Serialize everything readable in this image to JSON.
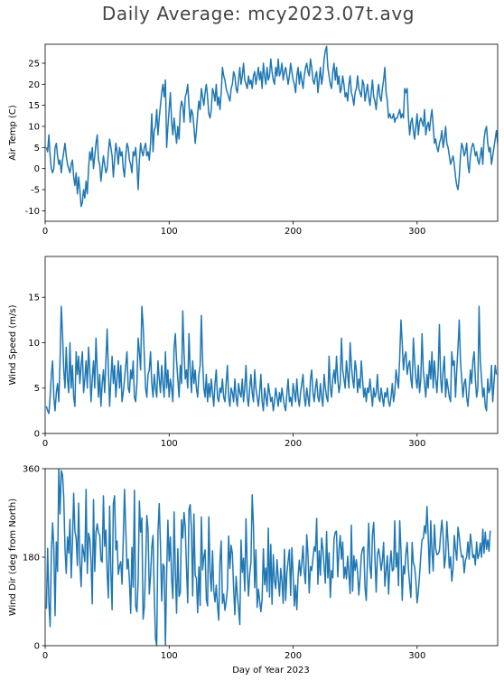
{
  "chart_data": {
    "title": "Daily Average: mcy2023.07t.avg",
    "xlabel": "Day of Year 2023",
    "colors": {
      "line": "#1f77b4",
      "title": "#444444"
    },
    "panels": [
      {
        "type": "line",
        "ylabel": "Air Temp (C)",
        "xlim": [
          0,
          365
        ],
        "ylim": [
          -12.5,
          29.5
        ],
        "xticks": [
          0,
          100,
          200,
          300
        ],
        "yticks": [
          -10,
          -5,
          0,
          5,
          10,
          15,
          20,
          25
        ],
        "x_start": 1,
        "values": [
          5,
          4,
          8,
          3,
          0,
          -1,
          0,
          5,
          6,
          3,
          1,
          2,
          -1,
          2,
          4,
          6,
          3,
          1,
          0,
          -1,
          1,
          2,
          -2,
          -4,
          -1,
          -6,
          -2,
          -5,
          -9,
          -8,
          -5,
          -7,
          -3,
          -6,
          0,
          4,
          2,
          5,
          0,
          3,
          6,
          8,
          2,
          1,
          -3,
          0,
          3,
          1,
          -1,
          0,
          4,
          7,
          5,
          3,
          -2,
          2,
          6,
          4,
          1,
          5,
          3,
          4,
          0,
          -2,
          3,
          6,
          5,
          2,
          1,
          -1,
          4,
          3,
          5,
          1,
          -5,
          2,
          6,
          4,
          3,
          5,
          6,
          3,
          4,
          2,
          6,
          13,
          4,
          9,
          10,
          14,
          8,
          12,
          15,
          18,
          20,
          17,
          21,
          5,
          10,
          14,
          18,
          11,
          8,
          12,
          9,
          6,
          10,
          7,
          14,
          16,
          15,
          11,
          17,
          18,
          20,
          15,
          11,
          14,
          13,
          10,
          6,
          9,
          13,
          16,
          14,
          19,
          17,
          15,
          18,
          20,
          17,
          13,
          12,
          14,
          19,
          18,
          16,
          20,
          15,
          17,
          14,
          18,
          24,
          22,
          21,
          19,
          18,
          17,
          16,
          19,
          20,
          23,
          22,
          19,
          18,
          21,
          24,
          20,
          22,
          25,
          21,
          20,
          19,
          22,
          20,
          21,
          19,
          22,
          23,
          20,
          22,
          24,
          21,
          23,
          19,
          25,
          22,
          20,
          24,
          21,
          22,
          26,
          23,
          21,
          20,
          24,
          22,
          26,
          22,
          23,
          25,
          21,
          23,
          24,
          22,
          20,
          22,
          25,
          23,
          21,
          20,
          18,
          22,
          24,
          20,
          23,
          21,
          19,
          22,
          24,
          25,
          23,
          22,
          26,
          24,
          21,
          20,
          22,
          23,
          18,
          21,
          24,
          20,
          22,
          26,
          28,
          29,
          24,
          22,
          20,
          19,
          23,
          25,
          21,
          24,
          20,
          22,
          18,
          19,
          22,
          20,
          17,
          18,
          16,
          20,
          22,
          18,
          17,
          15,
          18,
          19,
          22,
          19,
          18,
          17,
          21,
          20,
          16,
          18,
          20,
          17,
          15,
          18,
          21,
          17,
          16,
          14,
          18,
          20,
          17,
          16,
          19,
          21,
          24,
          18,
          16,
          12,
          13,
          12,
          12,
          13,
          11,
          12,
          12,
          13,
          14,
          12,
          13,
          12,
          19,
          18,
          19,
          12,
          8,
          11,
          12,
          9,
          7,
          10,
          13,
          8,
          11,
          12,
          11,
          10,
          14,
          8,
          10,
          11,
          9,
          12,
          14,
          10,
          6,
          7,
          5,
          4,
          6,
          7,
          9,
          5,
          7,
          10,
          6,
          5,
          3,
          1,
          2,
          3,
          1,
          -2,
          -4,
          -5,
          -2,
          3,
          6,
          5,
          3,
          4,
          6,
          1,
          -1,
          3,
          5,
          6,
          5,
          3,
          4,
          2,
          1,
          3,
          5,
          1,
          7,
          9,
          10,
          6,
          4,
          5,
          1,
          3,
          5,
          7,
          9,
          6,
          4,
          3,
          2,
          4
        ]
      },
      {
        "type": "line",
        "ylabel": "Wind Speed (m/s)",
        "xlim": [
          0,
          365
        ],
        "ylim": [
          0,
          19.5
        ],
        "xticks": [
          0,
          100,
          200,
          300
        ],
        "yticks": [
          0,
          5,
          10,
          15
        ],
        "x_start": 1,
        "values": [
          3.0,
          2.5,
          2.2,
          4.0,
          6.5,
          8.0,
          4.0,
          2.5,
          4.5,
          5.5,
          3.5,
          8.0,
          14.0,
          11.0,
          7.0,
          5.0,
          9.5,
          6.0,
          4.5,
          10.0,
          5.0,
          7.5,
          4.0,
          3.0,
          9.0,
          6.5,
          8.5,
          5.5,
          7.5,
          9.0,
          4.5,
          6.0,
          8.0,
          5.0,
          9.5,
          7.0,
          3.5,
          6.0,
          8.0,
          5.0,
          10.5,
          7.0,
          4.0,
          6.5,
          3.0,
          5.5,
          7.0,
          4.5,
          8.0,
          11.5,
          7.0,
          3.0,
          6.0,
          8.5,
          5.5,
          7.5,
          4.0,
          6.0,
          8.0,
          5.0,
          7.5,
          3.5,
          4.5,
          6.0,
          7.5,
          9.0,
          5.0,
          4.5,
          7.0,
          6.0,
          8.0,
          4.0,
          3.5,
          5.5,
          10.5,
          9.0,
          7.0,
          14.0,
          12.0,
          8.5,
          5.0,
          4.0,
          6.5,
          7.0,
          9.0,
          5.5,
          4.0,
          6.5,
          5.0,
          4.0,
          8.0,
          6.0,
          4.5,
          7.5,
          5.5,
          4.0,
          9.0,
          5.0,
          7.0,
          4.0,
          6.0,
          5.0,
          3.5,
          9.5,
          11.0,
          8.0,
          6.0,
          4.0,
          7.5,
          5.5,
          13.5,
          9.0,
          6.0,
          7.0,
          5.0,
          11.0,
          7.0,
          4.5,
          8.0,
          5.5,
          7.0,
          5.0,
          4.0,
          6.5,
          7.5,
          13.0,
          8.0,
          5.0,
          4.0,
          6.5,
          3.5,
          5.5,
          4.0,
          6.0,
          4.5,
          3.0,
          5.5,
          7.0,
          4.0,
          3.5,
          5.0,
          4.5,
          6.0,
          4.0,
          3.5,
          5.5,
          7.5,
          4.0,
          3.0,
          5.0,
          4.5,
          3.5,
          6.0,
          4.0,
          3.0,
          5.5,
          4.5,
          4.0,
          6.0,
          3.5,
          5.0,
          7.5,
          4.0,
          3.0,
          5.0,
          6.5,
          4.5,
          3.5,
          7.0,
          5.0,
          4.0,
          3.0,
          4.5,
          6.5,
          3.5,
          2.5,
          5.0,
          4.0,
          3.0,
          5.5,
          4.5,
          3.5,
          4.0,
          2.5,
          3.5,
          5.0,
          4.0,
          3.0,
          4.5,
          3.5,
          5.0,
          4.0,
          3.0,
          2.5,
          4.5,
          6.0,
          3.5,
          4.0,
          3.0,
          5.5,
          4.5,
          3.5,
          6.0,
          4.0,
          3.0,
          4.5,
          5.5,
          6.5,
          4.0,
          3.0,
          5.0,
          4.0,
          3.0,
          6.0,
          7.0,
          4.5,
          3.5,
          5.0,
          6.0,
          4.0,
          3.5,
          5.5,
          4.0,
          3.0,
          6.5,
          5.0,
          4.0,
          3.5,
          8.5,
          5.0,
          4.0,
          6.0,
          7.0,
          5.5,
          8.5,
          6.0,
          4.5,
          5.5,
          10.5,
          7.0,
          6.0,
          5.0,
          8.0,
          6.5,
          5.0,
          10.0,
          7.5,
          6.0,
          5.0,
          8.0,
          7.0,
          4.5,
          6.0,
          5.0,
          8.0,
          6.0,
          4.0,
          5.0,
          3.5,
          5.0,
          4.5,
          6.0,
          4.5,
          3.0,
          5.0,
          4.0,
          4.5,
          6.5,
          4.0,
          3.5,
          5.0,
          4.0,
          3.0,
          4.5,
          4.0,
          5.0,
          3.5,
          3.0,
          4.0,
          5.5,
          3.5,
          4.5,
          7.0,
          6.0,
          5.0,
          8.5,
          12.5,
          10.0,
          7.0,
          8.5,
          9.0,
          6.5,
          7.5,
          8.0,
          6.0,
          5.0,
          10.5,
          8.0,
          6.0,
          5.0,
          7.5,
          4.5,
          6.0,
          11.0,
          7.0,
          5.5,
          4.0,
          6.5,
          5.0,
          8.0,
          6.0,
          9.0,
          5.0,
          8.0,
          6.0,
          4.5,
          7.0,
          12.0,
          6.0,
          4.5,
          7.0,
          8.5,
          4.0,
          6.0,
          5.0,
          4.0,
          3.5,
          9.0,
          7.5,
          8.0,
          4.0,
          7.0,
          9.5,
          12.5,
          8.0,
          6.0,
          4.0,
          5.5,
          6.0,
          4.0,
          3.0,
          5.0,
          7.0,
          5.5,
          8.0,
          9.0,
          6.0,
          4.0,
          5.0,
          14.0,
          8.0,
          6.0,
          4.0,
          5.0,
          3.0,
          2.5,
          6.0,
          4.5,
          5.0,
          7.5,
          3.5,
          5.5,
          7.5,
          6.5
        ]
      },
      {
        "type": "line",
        "ylabel": "Wind Dir (deg from North)",
        "xlim": [
          0,
          365
        ],
        "ylim": [
          0,
          360
        ],
        "xticks": [
          0,
          100,
          200,
          300
        ],
        "yticks": [
          0,
          180,
          360
        ],
        "x_start": 1,
        "values": [
          75,
          198,
          88,
          39,
          189,
          250,
          198,
          61,
          211,
          151,
          360,
          268,
          356,
          347,
          301,
          198,
          147,
          221,
          188,
          257,
          138,
          208,
          310,
          233,
          219,
          163,
          290,
          169,
          120,
          206,
          190,
          171,
          318,
          147,
          229,
          217,
          173,
          85,
          297,
          151,
          230,
          248,
          229,
          226,
          174,
          170,
          305,
          202,
          235,
          148,
          97,
          284,
          150,
          73,
          289,
          305,
          195,
          213,
          145,
          162,
          171,
          125,
          216,
          318,
          238,
          156,
          176,
          130,
          66,
          200,
          119,
          316,
          80,
          69,
          131,
          294,
          231,
          260,
          54,
          79,
          157,
          265,
          235,
          105,
          142,
          200,
          224,
          107,
          14,
          0,
          231,
          289,
          205,
          91,
          166,
          161,
          0,
          146,
          255,
          172,
          221,
          136,
          96,
          272,
          153,
          66,
          197,
          100,
          108,
          256,
          219,
          271,
          241,
          158,
          87,
          277,
          287,
          236,
          101,
          268,
          143,
          137,
          67,
          160,
          82,
          262,
          154,
          181,
          195,
          94,
          81,
          262,
          151,
          111,
          193,
          112,
          89,
          123,
          83,
          52,
          171,
          213,
          86,
          105,
          72,
          89,
          115,
          223,
          157,
          204,
          188,
          118,
          63,
          141,
          104,
          76,
          43,
          215,
          149,
          178,
          111,
          258,
          158,
          101,
          147,
          170,
          307,
          245,
          118,
          195,
          78,
          115,
          91,
          69,
          95,
          197,
          124,
          158,
          110,
          239,
          99,
          206,
          84,
          185,
          132,
          116,
          175,
          137,
          101,
          157,
          132,
          86,
          196,
          92,
          149,
          173,
          195,
          102,
          199,
          146,
          81,
          123,
          73,
          141,
          174,
          142,
          168,
          203,
          149,
          126,
          226,
          186,
          107,
          161,
          153,
          177,
          201,
          192,
          259,
          125,
          193,
          143,
          219,
          197,
          161,
          127,
          232,
          138,
          189,
          98,
          153,
          138,
          217,
          231,
          233,
          140,
          195,
          224,
          176,
          211,
          137,
          160,
          136,
          182,
          146,
          106,
          245,
          111,
          183,
          153,
          175,
          150,
          103,
          138,
          183,
          197,
          201,
          118,
          92,
          176,
          249,
          161,
          137,
          227,
          251,
          179,
          109,
          186,
          197,
          180,
          153,
          173,
          210,
          121,
          153,
          183,
          105,
          163,
          193,
          152,
          155,
          254,
          160,
          189,
          122,
          254,
          195,
          92,
          162,
          146,
          188,
          210,
          157,
          125,
          98,
          210,
          168,
          161,
          133,
          87,
          110,
          144,
          184,
          216,
          218,
          244,
          228,
          283,
          220,
          147,
          254,
          192,
          152,
          246,
          197,
          185,
          187,
          193,
          227,
          255,
          222,
          158,
          182,
          252,
          209,
          158,
          181,
          131,
          156,
          224,
          195,
          174,
          241,
          222,
          196,
          180,
          183,
          148,
          173,
          181,
          211,
          176,
          227,
          206,
          179,
          185,
          164,
          211,
          177,
          186,
          209,
          180,
          237,
          188,
          231,
          196,
          215,
          192,
          234
        ]
      }
    ]
  }
}
